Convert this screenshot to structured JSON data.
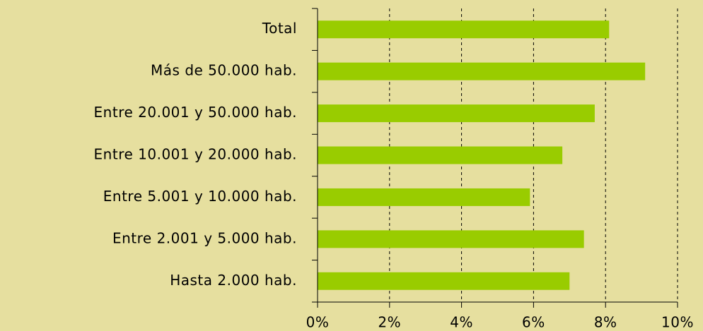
{
  "chart_data": {
    "type": "bar",
    "orientation": "horizontal",
    "categories": [
      "Total",
      "Más de 50.000 hab.",
      "Entre 20.001 y 50.000 hab.",
      "Entre 10.001 y 20.000 hab.",
      "Entre 5.001 y 10.000 hab.",
      "Entre 2.001 y 5.000 hab.",
      "Hasta 2.000 hab."
    ],
    "values": [
      8.1,
      9.1,
      7.7,
      6.8,
      5.9,
      7.4,
      7.0
    ],
    "color": "#99cc00",
    "xlim": [
      0,
      10
    ],
    "xticks": [
      {
        "value": 0,
        "label": "0%"
      },
      {
        "value": 2,
        "label": "2%"
      },
      {
        "value": 4,
        "label": "4%"
      },
      {
        "value": 6,
        "label": "6%"
      },
      {
        "value": 8,
        "label": "8%"
      },
      {
        "value": 10,
        "label": "10%"
      }
    ],
    "grid": true
  }
}
